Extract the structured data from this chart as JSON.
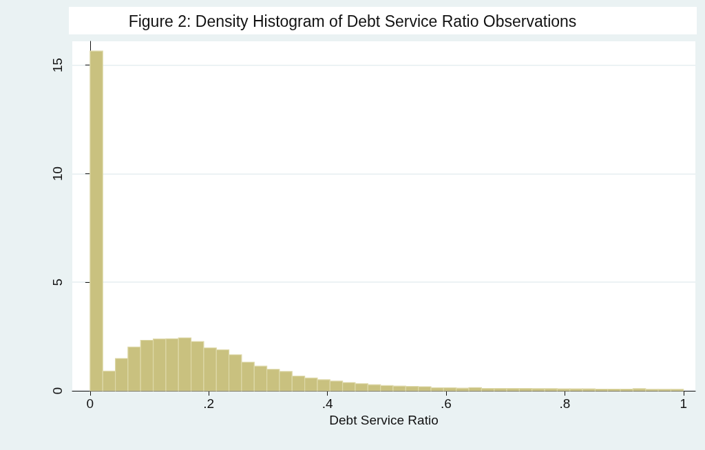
{
  "chart_data": {
    "type": "histogram",
    "title": "Figure 2: Density Histogram of Debt Service Ratio Observations",
    "xlabel": "Debt Service Ratio",
    "bins": [
      0,
      0.0213,
      0.0426,
      0.0638,
      0.0851,
      0.1064,
      0.1277,
      0.1489,
      0.1702,
      0.1915,
      0.2128,
      0.234,
      0.2553,
      0.2766,
      0.2979,
      0.3191,
      0.3404,
      0.3617,
      0.383,
      0.4043,
      0.4255,
      0.4468,
      0.4681,
      0.4894,
      0.5106,
      0.5319,
      0.5532,
      0.5745,
      0.5957,
      0.617,
      0.6383,
      0.6596,
      0.6809,
      0.7021,
      0.7234,
      0.7447,
      0.766,
      0.7872,
      0.8085,
      0.8298,
      0.8511,
      0.8723,
      0.8936,
      0.9149,
      0.9362,
      0.9574,
      0.9787,
      1
    ],
    "values": [
      15.65,
      0.91,
      1.49,
      2.02,
      2.33,
      2.39,
      2.4,
      2.44,
      2.27,
      1.98,
      1.89,
      1.66,
      1.32,
      1.14,
      0.99,
      0.89,
      0.68,
      0.59,
      0.51,
      0.45,
      0.38,
      0.33,
      0.28,
      0.24,
      0.22,
      0.2,
      0.19,
      0.14,
      0.14,
      0.12,
      0.15,
      0.11,
      0.11,
      0.11,
      0.11,
      0.1,
      0.1,
      0.09,
      0.09,
      0.09,
      0.08,
      0.08,
      0.08,
      0.1,
      0.07,
      0.07,
      0.07
    ],
    "color": "#c9c17f",
    "xlim": [
      -0.03,
      1.02
    ],
    "xticks": [
      0,
      {
        "value": 0.2,
        "label": ".2"
      },
      {
        "value": 0.4,
        "label": ".4"
      },
      {
        "value": 0.6,
        "label": ".6"
      },
      {
        "value": 0.8,
        "label": ".8"
      },
      1
    ],
    "ylim": [
      0,
      16.1
    ],
    "yticks": [
      0,
      5,
      10,
      15
    ],
    "grid": "y"
  }
}
